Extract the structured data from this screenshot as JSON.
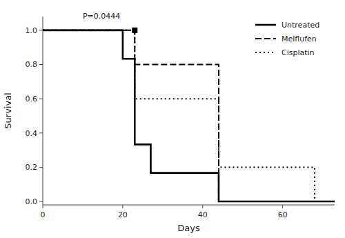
{
  "chart_data": {
    "type": "line",
    "xlabel": "Days",
    "ylabel": "Survival",
    "xlim": [
      0,
      73
    ],
    "ylim": [
      -0.02,
      1.08
    ],
    "xticks": [
      0,
      20,
      40,
      60
    ],
    "yticks": [
      {
        "value": 0.0,
        "label": "0.0"
      },
      0.2,
      0.4,
      0.6,
      0.8,
      {
        "value": 1.0,
        "label": "1.0"
      }
    ],
    "grid": false,
    "legend": "upper right",
    "series": [
      {
        "name": "Untreated",
        "color": "black",
        "line_style": "solid",
        "x": [
          0,
          20,
          20,
          23,
          23,
          27,
          27,
          44,
          44,
          73
        ],
        "values": [
          1.0,
          1.0,
          0.833,
          0.833,
          0.333,
          0.333,
          0.167,
          0.167,
          0.0,
          0.0
        ]
      },
      {
        "name": "Melflufen",
        "color": "black",
        "line_style": "dashed",
        "x": [
          0,
          23,
          23,
          44,
          44,
          73
        ],
        "values": [
          1.0,
          1.0,
          0.8,
          0.8,
          0.0,
          0.0
        ]
      },
      {
        "name": "Cisplatin",
        "color": "black",
        "line_style": "dotted",
        "x": [
          0,
          23,
          23,
          44,
          44,
          68,
          68,
          73
        ],
        "values": [
          1.0,
          1.0,
          0.6,
          0.6,
          0.2,
          0.2,
          0.0,
          0.0
        ]
      },
      {
        "type": "scatter",
        "marker": "square",
        "color": "black",
        "x": [
          23
        ],
        "values": [
          1.0
        ]
      }
    ],
    "annotations": [
      {
        "text": "P=0.0444",
        "x": 10,
        "y": 1.055
      }
    ]
  }
}
